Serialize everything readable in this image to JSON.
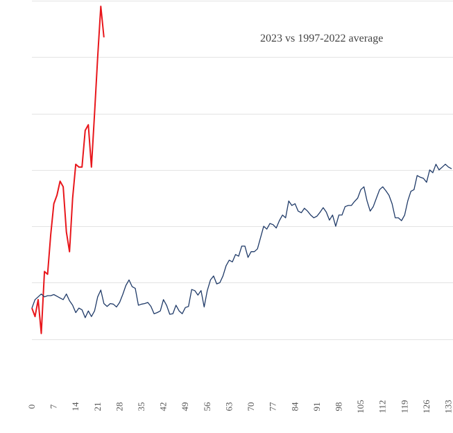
{
  "chart_data": {
    "type": "line",
    "title": "2023 vs 1997-2022 average",
    "xlabel": "",
    "ylabel": "",
    "x_ticks": [
      0,
      7,
      14,
      21,
      28,
      35,
      42,
      49,
      56,
      63,
      70,
      77,
      84,
      91,
      98,
      105,
      112,
      119,
      126,
      133
    ],
    "xlim": [
      0,
      134
    ],
    "ylim": [
      0,
      7
    ],
    "grid": true,
    "y_tick_labels_visible": false,
    "series": [
      {
        "id": "red",
        "color": "#e8161b",
        "x": [
          0,
          1,
          2,
          3,
          4,
          5,
          6,
          7,
          8,
          9,
          10,
          11,
          12,
          13,
          14,
          15,
          16,
          17,
          18,
          19,
          20,
          21,
          22,
          23
        ],
        "y": [
          1.55,
          1.4,
          1.7,
          1.1,
          2.2,
          2.15,
          2.85,
          3.4,
          3.55,
          3.8,
          3.7,
          2.9,
          2.55,
          3.5,
          4.1,
          4.05,
          4.05,
          4.7,
          4.8,
          4.05,
          5.0,
          6.0,
          6.9,
          6.35
        ]
      },
      {
        "id": "blue",
        "color": "#1f3a68",
        "x": [
          0,
          1,
          2,
          3,
          4,
          5,
          6,
          7,
          8,
          9,
          10,
          11,
          12,
          13,
          14,
          15,
          16,
          17,
          18,
          19,
          20,
          21,
          22,
          23,
          24,
          25,
          26,
          27,
          28,
          29,
          30,
          31,
          32,
          33,
          34,
          35,
          36,
          37,
          38,
          39,
          40,
          41,
          42,
          43,
          44,
          45,
          46,
          47,
          48,
          49,
          50,
          51,
          52,
          53,
          54,
          55,
          56,
          57,
          58,
          59,
          60,
          61,
          62,
          63,
          64,
          65,
          66,
          67,
          68,
          69,
          70,
          71,
          72,
          73,
          74,
          75,
          76,
          77,
          78,
          79,
          80,
          81,
          82,
          83,
          84,
          85,
          86,
          87,
          88,
          89,
          90,
          91,
          92,
          93,
          94,
          95,
          96,
          97,
          98,
          99,
          100,
          101,
          102,
          103,
          104,
          105,
          106,
          107,
          108,
          109,
          110,
          111,
          112,
          113,
          114,
          115,
          116,
          117,
          118,
          119,
          120,
          121,
          122,
          123,
          124,
          125,
          126,
          127,
          128,
          129,
          130,
          131,
          132,
          133,
          134
        ],
        "y": [
          1.55,
          1.7,
          1.75,
          1.8,
          1.75,
          1.77,
          1.77,
          1.79,
          1.76,
          1.73,
          1.7,
          1.8,
          1.68,
          1.6,
          1.47,
          1.55,
          1.52,
          1.38,
          1.5,
          1.4,
          1.5,
          1.75,
          1.87,
          1.63,
          1.58,
          1.63,
          1.62,
          1.57,
          1.65,
          1.79,
          1.95,
          2.05,
          1.93,
          1.9,
          1.6,
          1.62,
          1.63,
          1.65,
          1.58,
          1.45,
          1.47,
          1.5,
          1.7,
          1.6,
          1.44,
          1.45,
          1.6,
          1.5,
          1.45,
          1.56,
          1.58,
          1.88,
          1.86,
          1.78,
          1.86,
          1.57,
          1.86,
          2.05,
          2.12,
          1.98,
          2.0,
          2.12,
          2.3,
          2.4,
          2.37,
          2.5,
          2.47,
          2.65,
          2.65,
          2.45,
          2.55,
          2.55,
          2.6,
          2.8,
          3.0,
          2.95,
          3.05,
          3.03,
          2.97,
          3.1,
          3.2,
          3.15,
          3.45,
          3.37,
          3.4,
          3.27,
          3.24,
          3.32,
          3.27,
          3.2,
          3.15,
          3.18,
          3.25,
          3.33,
          3.25,
          3.11,
          3.2,
          3.0,
          3.2,
          3.2,
          3.35,
          3.37,
          3.37,
          3.44,
          3.5,
          3.65,
          3.7,
          3.45,
          3.27,
          3.35,
          3.5,
          3.65,
          3.7,
          3.63,
          3.55,
          3.4,
          3.15,
          3.15,
          3.1,
          3.2,
          3.45,
          3.62,
          3.65,
          3.9,
          3.87,
          3.85,
          3.78,
          4.0,
          3.95,
          4.1,
          4.0,
          4.05,
          4.1,
          4.05,
          4.02
        ]
      }
    ]
  }
}
